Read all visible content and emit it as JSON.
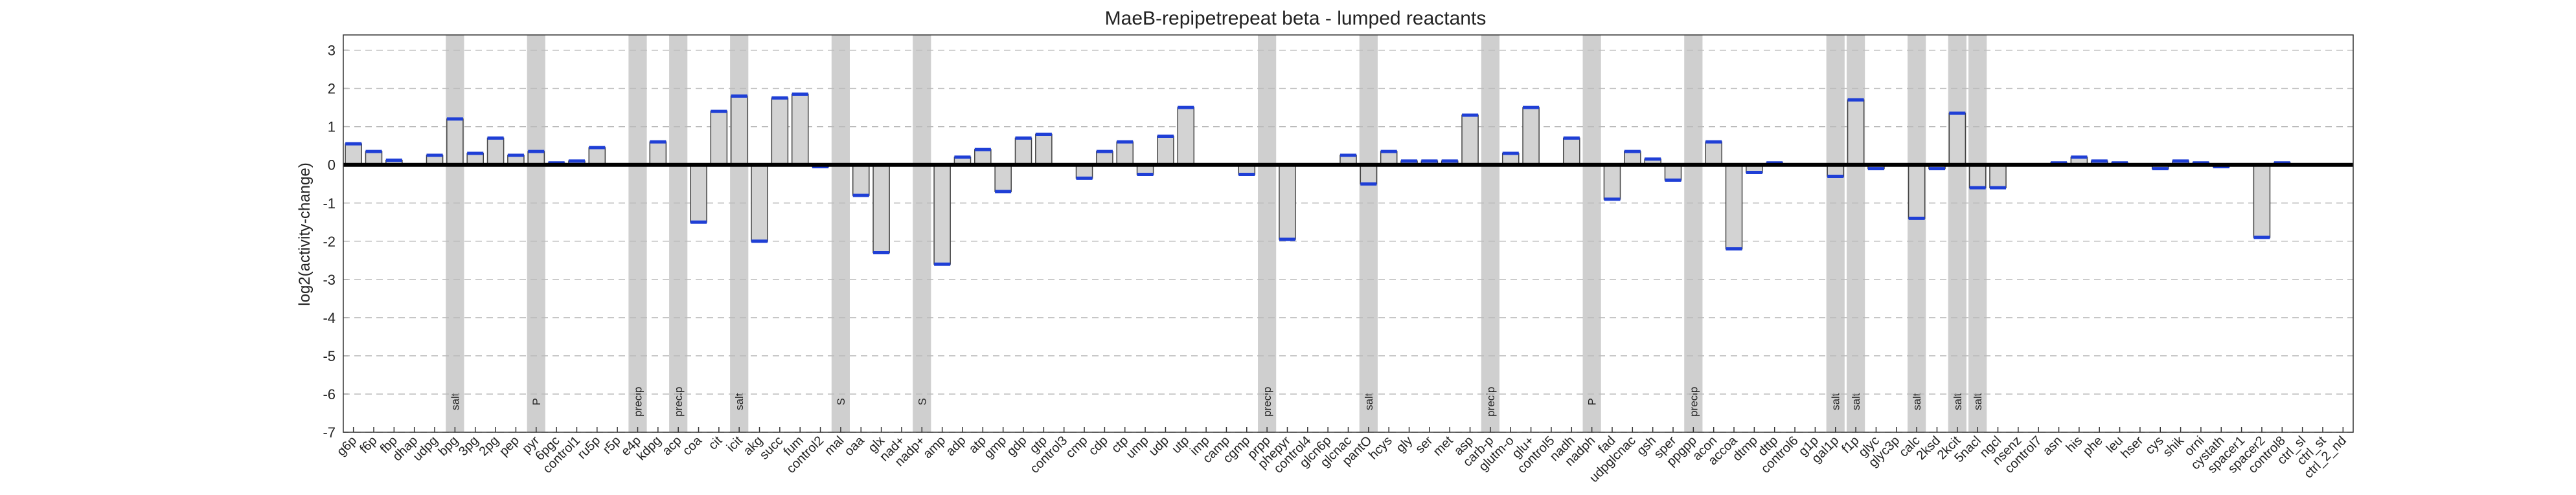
{
  "chart_data": {
    "type": "bar",
    "title": "MaeB-repipetrepeat beta - lumped reactants",
    "y_label": "log2(activity-change)",
    "categories": [
      "g6p",
      "f6p",
      "fbp",
      "dhap",
      "udpg",
      "bpg",
      "3pg",
      "2pg",
      "pep",
      "pyr",
      "6pgc",
      "control1",
      "ru5p",
      "r5p",
      "e4p",
      "kdpg",
      "acp",
      "coa",
      "cit",
      "icit",
      "akg",
      "succ",
      "fum",
      "control2",
      "mal",
      "oaa",
      "glx",
      "nad+",
      "nadp+",
      "amp",
      "adp",
      "atp",
      "gmp",
      "gdp",
      "gtp",
      "control3",
      "cmp",
      "cdp",
      "ctp",
      "ump",
      "udp",
      "utp",
      "imp",
      "camp",
      "cgmp",
      "prpp",
      "phepyr",
      "control4",
      "glcn6p",
      "glcnac",
      "pantO",
      "hcys",
      "gly",
      "ser",
      "met",
      "asp",
      "carb-p",
      "glutm-o",
      "glu+",
      "control5",
      "nadh",
      "nadph",
      "fad",
      "udpglcnac",
      "gsh",
      "sper",
      "ppgpp",
      "acon",
      "accoa",
      "dtmp",
      "dttp",
      "control6",
      "g1p",
      "gal1p",
      "f1p",
      "glyc",
      "glyc3p",
      "calc",
      "2ksd",
      "2kcit",
      "5nacl",
      "ngcl",
      "nsenz",
      "control7",
      "asn",
      "his",
      "phe",
      "leu",
      "hser",
      "cys",
      "shik",
      "orni",
      "cystath",
      "spacer1",
      "spacer2",
      "control8",
      "ctrl_sl",
      "ctrl_st",
      "ctrl_2_nd"
    ],
    "values": [
      0.55,
      0.35,
      0.12,
      0.0,
      0.25,
      1.2,
      0.3,
      0.7,
      0.25,
      0.35,
      0.05,
      0.1,
      0.45,
      0.0,
      0.0,
      0.6,
      0.0,
      -1.5,
      1.4,
      1.8,
      -2.0,
      1.75,
      1.85,
      -0.05,
      0.0,
      -0.8,
      -2.3,
      0.0,
      0.0,
      -2.6,
      0.2,
      0.4,
      -0.7,
      0.7,
      0.8,
      0.0,
      -0.35,
      0.35,
      0.6,
      -0.25,
      0.75,
      1.5,
      0.0,
      0.0,
      -0.25,
      0.0,
      -1.95,
      0.0,
      0.0,
      0.25,
      -0.5,
      0.35,
      0.1,
      0.1,
      0.1,
      1.3,
      0.0,
      0.3,
      1.5,
      0.0,
      0.7,
      0.0,
      -0.9,
      0.35,
      0.15,
      -0.4,
      0.0,
      0.6,
      -2.2,
      -0.2,
      0.05,
      0.0,
      0.0,
      -0.3,
      1.7,
      -0.1,
      0.0,
      -1.4,
      -0.1,
      1.35,
      -0.6,
      -0.6,
      0.0,
      0.0,
      0.05,
      0.2,
      0.1,
      0.05,
      0.0,
      -0.1,
      0.1,
      0.05,
      -0.05,
      0.0,
      -1.9,
      0.05,
      0.0,
      0.0,
      0.0
    ],
    "color": "#d3d3d3",
    "mean_color": "#1f3fd6",
    "band_color": "#cfcfcf",
    "annotations": [
      {
        "x": "bpg",
        "text": "salt"
      },
      {
        "x": "pyr",
        "text": "P"
      },
      {
        "x": "e4p",
        "text": "precip"
      },
      {
        "x": "acp",
        "text": "precip"
      },
      {
        "x": "icit",
        "text": "salt"
      },
      {
        "x": "mal",
        "text": "S"
      },
      {
        "x": "nadp+",
        "text": "S"
      },
      {
        "x": "prpp",
        "text": "precip"
      },
      {
        "x": "pantO",
        "text": "salt"
      },
      {
        "x": "carb-p",
        "text": "precip"
      },
      {
        "x": "nadph",
        "text": "P"
      },
      {
        "x": "ppgpp",
        "text": "precip"
      },
      {
        "x": "gal1p",
        "text": "salt"
      },
      {
        "x": "f1p",
        "text": "salt"
      },
      {
        "x": "calc",
        "text": "salt"
      },
      {
        "x": "2kcit",
        "text": "salt"
      },
      {
        "x": "5nacl",
        "text": "salt"
      }
    ],
    "ylim": [
      -7,
      3.4
    ],
    "yticks": [
      -7,
      -6,
      -5,
      -4,
      -3,
      -2,
      -1,
      0,
      1,
      2,
      3
    ],
    "grid": true
  }
}
